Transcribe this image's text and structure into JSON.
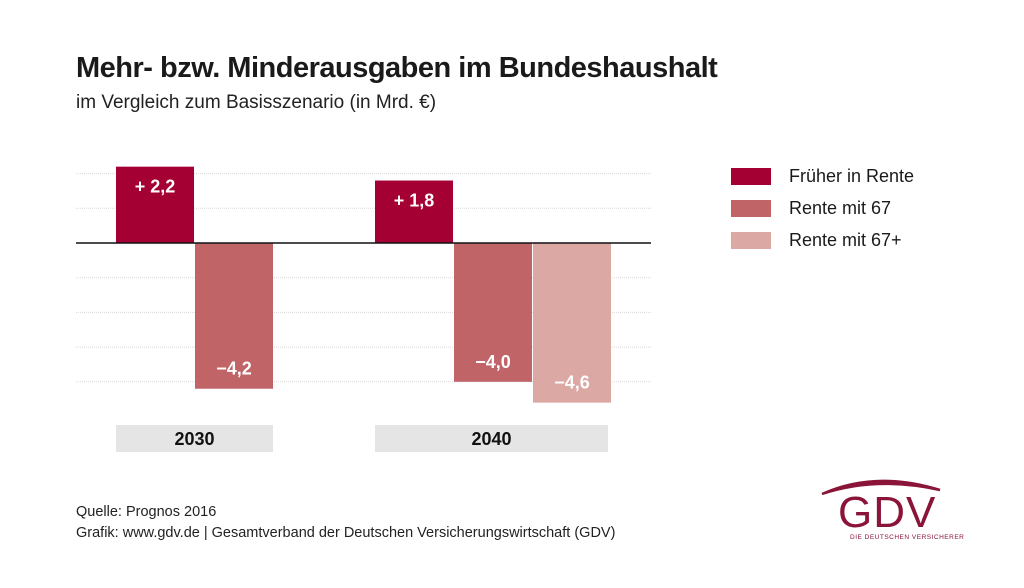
{
  "header": {
    "title": "Mehr- bzw. Minderausgaben im Bundeshaushalt",
    "subtitle": "im Vergleich zum Basisszenario (in Mrd. €)"
  },
  "chart_data": {
    "type": "bar",
    "title": "Mehr- bzw. Minderausgaben im Bundeshaushalt",
    "subtitle": "im Vergleich zum Basisszenario (in Mrd. €)",
    "xlabel": "",
    "ylabel": "Mrd. €",
    "categories": [
      "2030",
      "2040"
    ],
    "series": [
      {
        "name": "Früher in Rente",
        "color": "#a50034",
        "values": [
          2.2,
          1.8
        ],
        "labels": [
          "+ 2,2",
          "+ 1,8"
        ]
      },
      {
        "name": "Rente mit 67",
        "color": "#c06468",
        "values": [
          -4.2,
          -4.0
        ],
        "labels": [
          "−4,2",
          "−4,0"
        ]
      },
      {
        "name": "Rente mit 67+",
        "color": "#dba8a4",
        "values": [
          null,
          -4.6
        ],
        "labels": [
          null,
          "−4,6"
        ]
      }
    ],
    "ylim": [
      -4.6,
      2.2
    ],
    "grid": true,
    "gridlines": [
      2,
      1,
      0,
      -1,
      -2,
      -3,
      -4
    ],
    "legend_position": "right"
  },
  "legend": [
    {
      "label": "Früher in Rente",
      "color": "#a50034"
    },
    {
      "label": "Rente mit 67",
      "color": "#c06468"
    },
    {
      "label": "Rente mit 67+",
      "color": "#dba8a4"
    }
  ],
  "footer": {
    "source": "Quelle: Prognos 2016",
    "credit": "Grafik: www.gdv.de | Gesamtverband der Deutschen Versicherungswirtschaft (GDV)"
  },
  "logo": {
    "text": "GDV",
    "tagline": "DIE DEUTSCHEN VERSICHERER",
    "color": "#8a1538"
  }
}
